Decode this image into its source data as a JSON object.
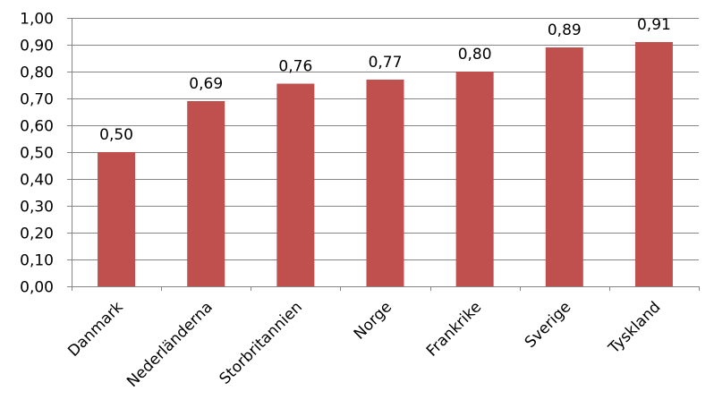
{
  "chart_data": {
    "type": "bar",
    "title": "",
    "xlabel": "",
    "ylabel": "",
    "categories": [
      "Danmark",
      "Nederländerna",
      "Storbritannien",
      "Norge",
      "Frankrike",
      "Sverige",
      "Tyskland"
    ],
    "values": [
      0.5,
      0.69,
      0.755,
      0.77,
      0.8,
      0.89,
      0.91
    ],
    "value_labels": [
      "0,50",
      "0,69",
      "0,76",
      "0,77",
      "0,80",
      "0,89",
      "0,91"
    ],
    "ylim": [
      0,
      1
    ],
    "yticks": [
      0,
      0.1,
      0.2,
      0.3,
      0.4,
      0.5,
      0.6,
      0.7,
      0.8,
      0.9,
      1.0
    ],
    "ytick_labels": [
      "0,00",
      "0,10",
      "0,20",
      "0,30",
      "0,40",
      "0,50",
      "0,60",
      "0,70",
      "0,80",
      "0,90",
      "1,00"
    ],
    "grid": true,
    "legend": "none",
    "bar_color": "#c0504d"
  }
}
